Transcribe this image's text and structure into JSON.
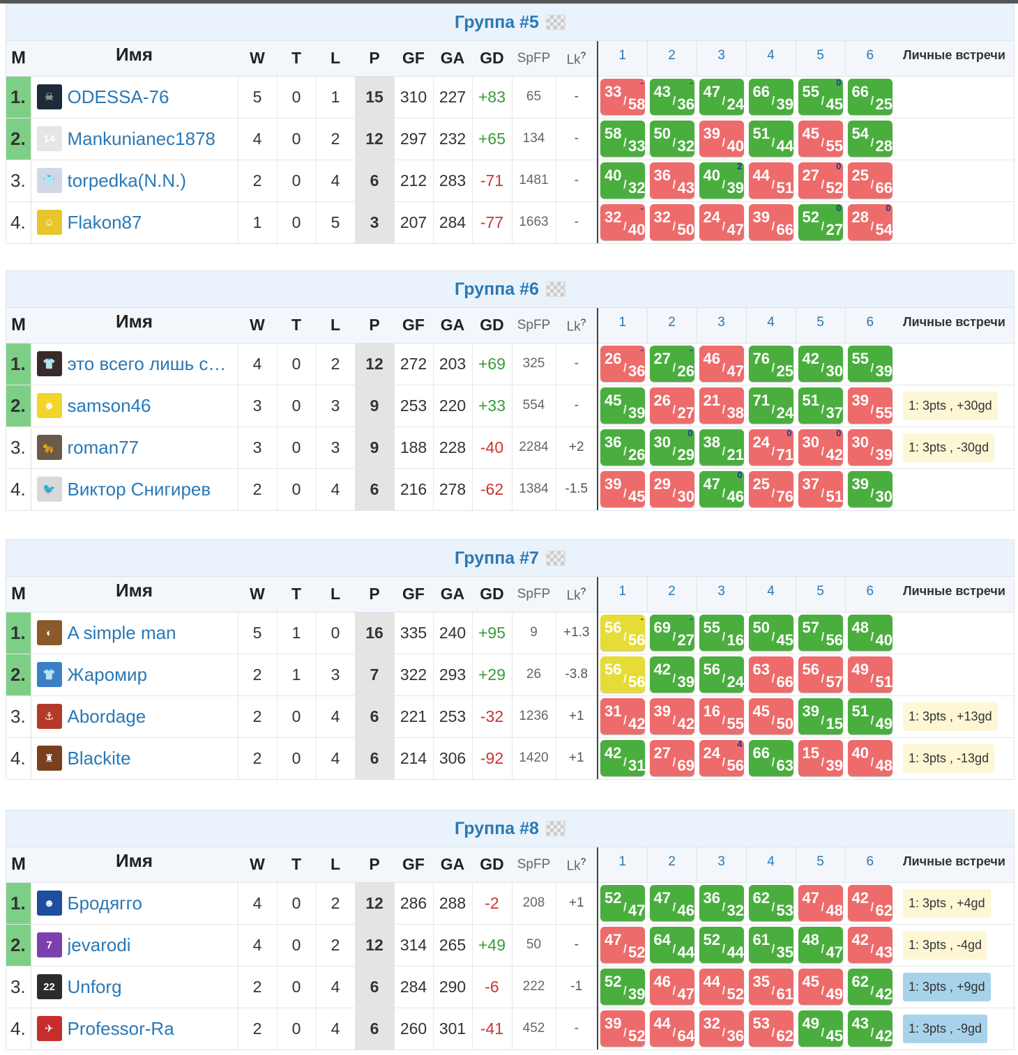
{
  "headers": {
    "place": "M",
    "name": "Имя",
    "w": "W",
    "t": "T",
    "l": "L",
    "p": "P",
    "gf": "GF",
    "ga": "GA",
    "gd": "GD",
    "spfp": "SpFP",
    "lk": "Lk",
    "lk_help": "?",
    "matches": [
      "1",
      "2",
      "3",
      "4",
      "5",
      "6"
    ],
    "h2h": "Личные встречи"
  },
  "groups": [
    {
      "title": "Группа #5",
      "rows": [
        {
          "place": "1.",
          "name": "ODESSA-76",
          "avatar_color": "#1c2a3a",
          "avatar_icon": "☠",
          "w": "5",
          "t": "0",
          "l": "1",
          "p": "15",
          "gf": "310",
          "ga": "227",
          "gd": "+83",
          "spfp": "65",
          "lk": "-",
          "h2h": "",
          "matches": [
            {
              "f": "33",
              "a": "58",
              "r": "loss",
              "mark": "-"
            },
            {
              "f": "43",
              "a": "36",
              "r": "win",
              "mark": "-"
            },
            {
              "f": "47",
              "a": "24",
              "r": "win",
              "mark": ""
            },
            {
              "f": "66",
              "a": "39",
              "r": "win",
              "mark": ""
            },
            {
              "f": "55",
              "a": "45",
              "r": "win",
              "mark": "0"
            },
            {
              "f": "66",
              "a": "25",
              "r": "win",
              "mark": ""
            }
          ]
        },
        {
          "place": "2.",
          "name": "Mankunianec1878",
          "avatar_color": "#e6e6e6",
          "avatar_icon": "14",
          "w": "4",
          "t": "0",
          "l": "2",
          "p": "12",
          "gf": "297",
          "ga": "232",
          "gd": "+65",
          "spfp": "134",
          "lk": "-",
          "h2h": "",
          "matches": [
            {
              "f": "58",
              "a": "33",
              "r": "win",
              "mark": ""
            },
            {
              "f": "50",
              "a": "32",
              "r": "win",
              "mark": ""
            },
            {
              "f": "39",
              "a": "40",
              "r": "loss",
              "mark": ""
            },
            {
              "f": "51",
              "a": "44",
              "r": "win",
              "mark": ""
            },
            {
              "f": "45",
              "a": "55",
              "r": "loss",
              "mark": ""
            },
            {
              "f": "54",
              "a": "28",
              "r": "win",
              "mark": ""
            }
          ]
        },
        {
          "place": "3.",
          "name": "torpedka(N.N.)",
          "avatar_color": "#cfd8e6",
          "avatar_icon": "👕",
          "w": "2",
          "t": "0",
          "l": "4",
          "p": "6",
          "gf": "212",
          "ga": "283",
          "gd": "-71",
          "spfp": "1481",
          "lk": "-",
          "h2h": "",
          "matches": [
            {
              "f": "40",
              "a": "32",
              "r": "win",
              "mark": ""
            },
            {
              "f": "36",
              "a": "43",
              "r": "loss",
              "mark": ""
            },
            {
              "f": "40",
              "a": "39",
              "r": "win",
              "mark": "2"
            },
            {
              "f": "44",
              "a": "51",
              "r": "loss",
              "mark": ""
            },
            {
              "f": "27",
              "a": "52",
              "r": "loss",
              "mark": "0"
            },
            {
              "f": "25",
              "a": "66",
              "r": "loss",
              "mark": ""
            }
          ]
        },
        {
          "place": "4.",
          "name": "Flakon87",
          "avatar_color": "#e8c52a",
          "avatar_icon": "☺",
          "w": "1",
          "t": "0",
          "l": "5",
          "p": "3",
          "gf": "207",
          "ga": "284",
          "gd": "-77",
          "spfp": "1663",
          "lk": "-",
          "h2h": "",
          "matches": [
            {
              "f": "32",
              "a": "40",
              "r": "loss",
              "mark": "-"
            },
            {
              "f": "32",
              "a": "50",
              "r": "loss",
              "mark": ""
            },
            {
              "f": "24",
              "a": "47",
              "r": "loss",
              "mark": ""
            },
            {
              "f": "39",
              "a": "66",
              "r": "loss",
              "mark": ""
            },
            {
              "f": "52",
              "a": "27",
              "r": "win",
              "mark": "0"
            },
            {
              "f": "28",
              "a": "54",
              "r": "loss",
              "mark": "0"
            }
          ]
        }
      ]
    },
    {
      "title": "Группа #6",
      "rows": [
        {
          "place": "1.",
          "name": "это всего лишь с…",
          "avatar_color": "#3b2a2a",
          "avatar_icon": "👕",
          "w": "4",
          "t": "0",
          "l": "2",
          "p": "12",
          "gf": "272",
          "ga": "203",
          "gd": "+69",
          "spfp": "325",
          "lk": "-",
          "h2h": "",
          "matches": [
            {
              "f": "26",
              "a": "36",
              "r": "loss",
              "mark": "-"
            },
            {
              "f": "27",
              "a": "26",
              "r": "win",
              "mark": "-"
            },
            {
              "f": "46",
              "a": "47",
              "r": "loss",
              "mark": ""
            },
            {
              "f": "76",
              "a": "25",
              "r": "win",
              "mark": ""
            },
            {
              "f": "42",
              "a": "30",
              "r": "win",
              "mark": ""
            },
            {
              "f": "55",
              "a": "39",
              "r": "win",
              "mark": ""
            }
          ]
        },
        {
          "place": "2.",
          "name": "samson46",
          "avatar_color": "#f2d52a",
          "avatar_icon": "☻",
          "w": "3",
          "t": "0",
          "l": "3",
          "p": "9",
          "gf": "253",
          "ga": "220",
          "gd": "+33",
          "spfp": "554",
          "lk": "-",
          "h2h": "1: 3pts , +30gd",
          "matches": [
            {
              "f": "45",
              "a": "39",
              "r": "win",
              "mark": ""
            },
            {
              "f": "26",
              "a": "27",
              "r": "loss",
              "mark": ""
            },
            {
              "f": "21",
              "a": "38",
              "r": "loss",
              "mark": ""
            },
            {
              "f": "71",
              "a": "24",
              "r": "win",
              "mark": ""
            },
            {
              "f": "51",
              "a": "37",
              "r": "win",
              "mark": ""
            },
            {
              "f": "39",
              "a": "55",
              "r": "loss",
              "mark": ""
            }
          ]
        },
        {
          "place": "3.",
          "name": "roman77",
          "avatar_color": "#6b5a48",
          "avatar_icon": "🐆",
          "w": "3",
          "t": "0",
          "l": "3",
          "p": "9",
          "gf": "188",
          "ga": "228",
          "gd": "-40",
          "spfp": "2284",
          "lk": "+2",
          "h2h": "1: 3pts , -30gd",
          "matches": [
            {
              "f": "36",
              "a": "26",
              "r": "win",
              "mark": ""
            },
            {
              "f": "30",
              "a": "29",
              "r": "win",
              "mark": "0"
            },
            {
              "f": "38",
              "a": "21",
              "r": "win",
              "mark": ""
            },
            {
              "f": "24",
              "a": "71",
              "r": "loss",
              "mark": "0"
            },
            {
              "f": "30",
              "a": "42",
              "r": "loss",
              "mark": "0"
            },
            {
              "f": "30",
              "a": "39",
              "r": "loss",
              "mark": ""
            }
          ]
        },
        {
          "place": "4.",
          "name": "Виктор Снигирев",
          "avatar_color": "#d9d9d9",
          "avatar_icon": "🐦",
          "w": "2",
          "t": "0",
          "l": "4",
          "p": "6",
          "gf": "216",
          "ga": "278",
          "gd": "-62",
          "spfp": "1384",
          "lk": "-1.5",
          "h2h": "",
          "matches": [
            {
              "f": "39",
              "a": "45",
              "r": "loss",
              "mark": ""
            },
            {
              "f": "29",
              "a": "30",
              "r": "loss",
              "mark": ""
            },
            {
              "f": "47",
              "a": "46",
              "r": "win",
              "mark": "0"
            },
            {
              "f": "25",
              "a": "76",
              "r": "loss",
              "mark": ""
            },
            {
              "f": "37",
              "a": "51",
              "r": "loss",
              "mark": ""
            },
            {
              "f": "39",
              "a": "30",
              "r": "win",
              "mark": ""
            }
          ]
        }
      ]
    },
    {
      "title": "Группа #7",
      "rows": [
        {
          "place": "1.",
          "name": "A simple man",
          "avatar_color": "#8a5a2a",
          "avatar_icon": "◐",
          "w": "5",
          "t": "1",
          "l": "0",
          "p": "16",
          "gf": "335",
          "ga": "240",
          "gd": "+95",
          "spfp": "9",
          "lk": "+1.3",
          "h2h": "",
          "matches": [
            {
              "f": "56",
              "a": "56",
              "r": "draw",
              "mark": "-"
            },
            {
              "f": "69",
              "a": "27",
              "r": "win",
              "mark": "-"
            },
            {
              "f": "55",
              "a": "16",
              "r": "win",
              "mark": ""
            },
            {
              "f": "50",
              "a": "45",
              "r": "win",
              "mark": ""
            },
            {
              "f": "57",
              "a": "56",
              "r": "win",
              "mark": ""
            },
            {
              "f": "48",
              "a": "40",
              "r": "win",
              "mark": ""
            }
          ]
        },
        {
          "place": "2.",
          "name": "Жаромир",
          "avatar_color": "#3c7fc4",
          "avatar_icon": "👕",
          "w": "2",
          "t": "1",
          "l": "3",
          "p": "7",
          "gf": "322",
          "ga": "293",
          "gd": "+29",
          "spfp": "26",
          "lk": "-3.8",
          "h2h": "",
          "matches": [
            {
              "f": "56",
              "a": "56",
              "r": "draw",
              "mark": ""
            },
            {
              "f": "42",
              "a": "39",
              "r": "win",
              "mark": ""
            },
            {
              "f": "56",
              "a": "24",
              "r": "win",
              "mark": ""
            },
            {
              "f": "63",
              "a": "66",
              "r": "loss",
              "mark": ""
            },
            {
              "f": "56",
              "a": "57",
              "r": "loss",
              "mark": ""
            },
            {
              "f": "49",
              "a": "51",
              "r": "loss",
              "mark": ""
            }
          ]
        },
        {
          "place": "3.",
          "name": "Abordage",
          "avatar_color": "#b33a2a",
          "avatar_icon": "⚓",
          "w": "2",
          "t": "0",
          "l": "4",
          "p": "6",
          "gf": "221",
          "ga": "253",
          "gd": "-32",
          "spfp": "1236",
          "lk": "+1",
          "h2h": "1: 3pts , +13gd",
          "matches": [
            {
              "f": "31",
              "a": "42",
              "r": "loss",
              "mark": ""
            },
            {
              "f": "39",
              "a": "42",
              "r": "loss",
              "mark": ""
            },
            {
              "f": "16",
              "a": "55",
              "r": "loss",
              "mark": ""
            },
            {
              "f": "45",
              "a": "50",
              "r": "loss",
              "mark": ""
            },
            {
              "f": "39",
              "a": "15",
              "r": "win",
              "mark": ""
            },
            {
              "f": "51",
              "a": "49",
              "r": "win",
              "mark": ""
            }
          ]
        },
        {
          "place": "4.",
          "name": "Blackite",
          "avatar_color": "#7a3f1e",
          "avatar_icon": "♜",
          "w": "2",
          "t": "0",
          "l": "4",
          "p": "6",
          "gf": "214",
          "ga": "306",
          "gd": "-92",
          "spfp": "1420",
          "lk": "+1",
          "h2h": "1: 3pts , -13gd",
          "matches": [
            {
              "f": "42",
              "a": "31",
              "r": "win",
              "mark": ""
            },
            {
              "f": "27",
              "a": "69",
              "r": "loss",
              "mark": ""
            },
            {
              "f": "24",
              "a": "56",
              "r": "loss",
              "mark": "4"
            },
            {
              "f": "66",
              "a": "63",
              "r": "win",
              "mark": ""
            },
            {
              "f": "15",
              "a": "39",
              "r": "loss",
              "mark": ""
            },
            {
              "f": "40",
              "a": "48",
              "r": "loss",
              "mark": ""
            }
          ]
        }
      ]
    },
    {
      "title": "Группа #8",
      "rows": [
        {
          "place": "1.",
          "name": "Бродягго",
          "avatar_color": "#1d4ea0",
          "avatar_icon": "☻",
          "w": "4",
          "t": "0",
          "l": "2",
          "p": "12",
          "gf": "286",
          "ga": "288",
          "gd": "-2",
          "spfp": "208",
          "lk": "+1",
          "h2h": "1: 3pts , +4gd",
          "h2h_style": "yellow",
          "matches": [
            {
              "f": "52",
              "a": "47",
              "r": "win",
              "mark": ""
            },
            {
              "f": "47",
              "a": "46",
              "r": "win",
              "mark": ""
            },
            {
              "f": "36",
              "a": "32",
              "r": "win",
              "mark": ""
            },
            {
              "f": "62",
              "a": "53",
              "r": "win",
              "mark": ""
            },
            {
              "f": "47",
              "a": "48",
              "r": "loss",
              "mark": ""
            },
            {
              "f": "42",
              "a": "62",
              "r": "loss",
              "mark": ""
            }
          ]
        },
        {
          "place": "2.",
          "name": "jevarodi",
          "avatar_color": "#7b3fb0",
          "avatar_icon": "7",
          "w": "4",
          "t": "0",
          "l": "2",
          "p": "12",
          "gf": "314",
          "ga": "265",
          "gd": "+49",
          "spfp": "50",
          "lk": "-",
          "h2h": "1: 3pts , -4gd",
          "h2h_style": "yellow",
          "matches": [
            {
              "f": "47",
              "a": "52",
              "r": "loss",
              "mark": ""
            },
            {
              "f": "64",
              "a": "44",
              "r": "win",
              "mark": ""
            },
            {
              "f": "52",
              "a": "44",
              "r": "win",
              "mark": ""
            },
            {
              "f": "61",
              "a": "35",
              "r": "win",
              "mark": ""
            },
            {
              "f": "48",
              "a": "47",
              "r": "win",
              "mark": ""
            },
            {
              "f": "42",
              "a": "43",
              "r": "loss",
              "mark": ""
            }
          ]
        },
        {
          "place": "3.",
          "name": "Unforg",
          "avatar_color": "#2c2c2c",
          "avatar_icon": "22",
          "w": "2",
          "t": "0",
          "l": "4",
          "p": "6",
          "gf": "284",
          "ga": "290",
          "gd": "-6",
          "spfp": "222",
          "lk": "-1",
          "h2h": "1: 3pts , +9gd",
          "h2h_style": "blue",
          "matches": [
            {
              "f": "52",
              "a": "39",
              "r": "win",
              "mark": ""
            },
            {
              "f": "46",
              "a": "47",
              "r": "loss",
              "mark": ""
            },
            {
              "f": "44",
              "a": "52",
              "r": "loss",
              "mark": ""
            },
            {
              "f": "35",
              "a": "61",
              "r": "loss",
              "mark": ""
            },
            {
              "f": "45",
              "a": "49",
              "r": "loss",
              "mark": ""
            },
            {
              "f": "62",
              "a": "42",
              "r": "win",
              "mark": ""
            }
          ]
        },
        {
          "place": "4.",
          "name": "Professor-Ra",
          "avatar_color": "#c62e2e",
          "avatar_icon": "✈",
          "w": "2",
          "t": "0",
          "l": "4",
          "p": "6",
          "gf": "260",
          "ga": "301",
          "gd": "-41",
          "spfp": "452",
          "lk": "-",
          "h2h": "1: 3pts , -9gd",
          "h2h_style": "blue",
          "matches": [
            {
              "f": "39",
              "a": "52",
              "r": "loss",
              "mark": ""
            },
            {
              "f": "44",
              "a": "64",
              "r": "loss",
              "mark": ""
            },
            {
              "f": "32",
              "a": "36",
              "r": "loss",
              "mark": ""
            },
            {
              "f": "53",
              "a": "62",
              "r": "loss",
              "mark": ""
            },
            {
              "f": "49",
              "a": "45",
              "r": "win",
              "mark": ""
            },
            {
              "f": "43",
              "a": "42",
              "r": "win",
              "mark": ""
            }
          ]
        }
      ]
    }
  ]
}
